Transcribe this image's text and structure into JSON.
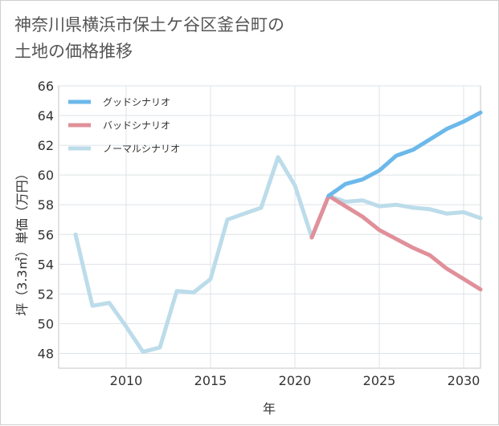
{
  "chart_data": {
    "type": "line",
    "title": "神奈川県横浜市保土ケ谷区釜台町の土地の価格推移",
    "title_lines": [
      "神奈川県横浜市保土ケ谷区釜台町の",
      "土地の価格推移"
    ],
    "xlabel": "年",
    "ylabel": "坪（3.3㎡）単価（万円）",
    "xlim": [
      2006,
      2031
    ],
    "ylim": [
      47,
      66
    ],
    "x_ticks": [
      2010,
      2015,
      2020,
      2025,
      2030
    ],
    "y_ticks": [
      48,
      50,
      52,
      54,
      56,
      58,
      60,
      62,
      64,
      66
    ],
    "grid": true,
    "legend_position": "top-left",
    "series": [
      {
        "name": "グッドシナリオ",
        "color": "#6cb8ea",
        "x": [
          2022,
          2023,
          2024,
          2025,
          2026,
          2027,
          2028,
          2029,
          2030,
          2031
        ],
        "values": [
          58.6,
          59.4,
          59.7,
          60.3,
          61.3,
          61.7,
          62.4,
          63.1,
          63.6,
          64.2
        ]
      },
      {
        "name": "バッドシナリオ",
        "color": "#e0909a",
        "x": [
          2021,
          2022,
          2023,
          2024,
          2025,
          2026,
          2027,
          2028,
          2029,
          2030,
          2031
        ],
        "values": [
          55.8,
          58.6,
          57.9,
          57.2,
          56.3,
          55.7,
          55.1,
          54.6,
          53.7,
          53.0,
          52.3
        ]
      },
      {
        "name": "ノーマルシナリオ",
        "color": "#bcdcea",
        "x": [
          2007,
          2008,
          2009,
          2010,
          2011,
          2012,
          2013,
          2014,
          2015,
          2016,
          2017,
          2018,
          2019,
          2020,
          2021,
          2022,
          2023,
          2024,
          2025,
          2026,
          2027,
          2028,
          2029,
          2030,
          2031
        ],
        "values": [
          56.0,
          51.2,
          51.4,
          49.8,
          48.1,
          48.4,
          52.2,
          52.1,
          53.0,
          57.0,
          57.4,
          57.8,
          61.2,
          59.3,
          55.8,
          58.6,
          58.2,
          58.3,
          57.9,
          58.0,
          57.8,
          57.7,
          57.4,
          57.5,
          57.1
        ]
      }
    ]
  }
}
